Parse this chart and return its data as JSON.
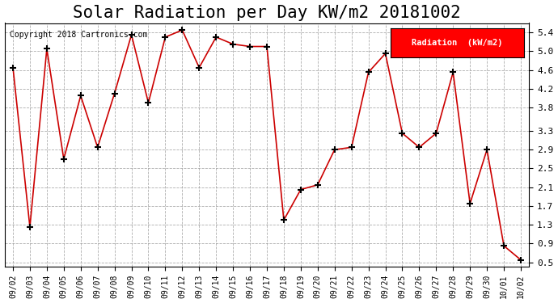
{
  "title": "Solar Radiation per Day KW/m2 20181002",
  "copyright": "Copyright 2018 Cartronics.com",
  "legend_label": "Radiation  (kW/m2)",
  "dates": [
    "09/02",
    "09/03",
    "09/04",
    "09/05",
    "09/06",
    "09/07",
    "09/08",
    "09/09",
    "09/10",
    "09/11",
    "09/12",
    "09/13",
    "09/14",
    "09/15",
    "09/16",
    "09/17",
    "09/18",
    "09/19",
    "09/20",
    "09/21",
    "09/22",
    "09/23",
    "09/24",
    "09/25",
    "09/26",
    "09/27",
    "09/28",
    "09/29",
    "09/30",
    "10/01",
    "10/02"
  ],
  "values": [
    4.65,
    1.25,
    5.05,
    2.7,
    4.05,
    2.95,
    4.1,
    5.35,
    3.9,
    5.3,
    5.45,
    4.65,
    5.3,
    5.15,
    5.1,
    5.1,
    1.4,
    2.05,
    2.15,
    2.9,
    2.95,
    4.55,
    4.95,
    3.25,
    2.95,
    3.25,
    4.55,
    1.75,
    2.9,
    0.85,
    0.55
  ],
  "line_color": "#cc0000",
  "marker_color": "#000000",
  "bg_color": "#ffffff",
  "grid_color": "#999999",
  "title_fontsize": 15,
  "ylim": [
    0.4,
    5.6
  ],
  "yticks": [
    0.5,
    0.9,
    1.3,
    1.7,
    2.1,
    2.5,
    2.9,
    3.3,
    3.8,
    4.2,
    4.6,
    5.0,
    5.4
  ],
  "legend_bg": "#ff0000",
  "legend_text_color": "#ffffff"
}
